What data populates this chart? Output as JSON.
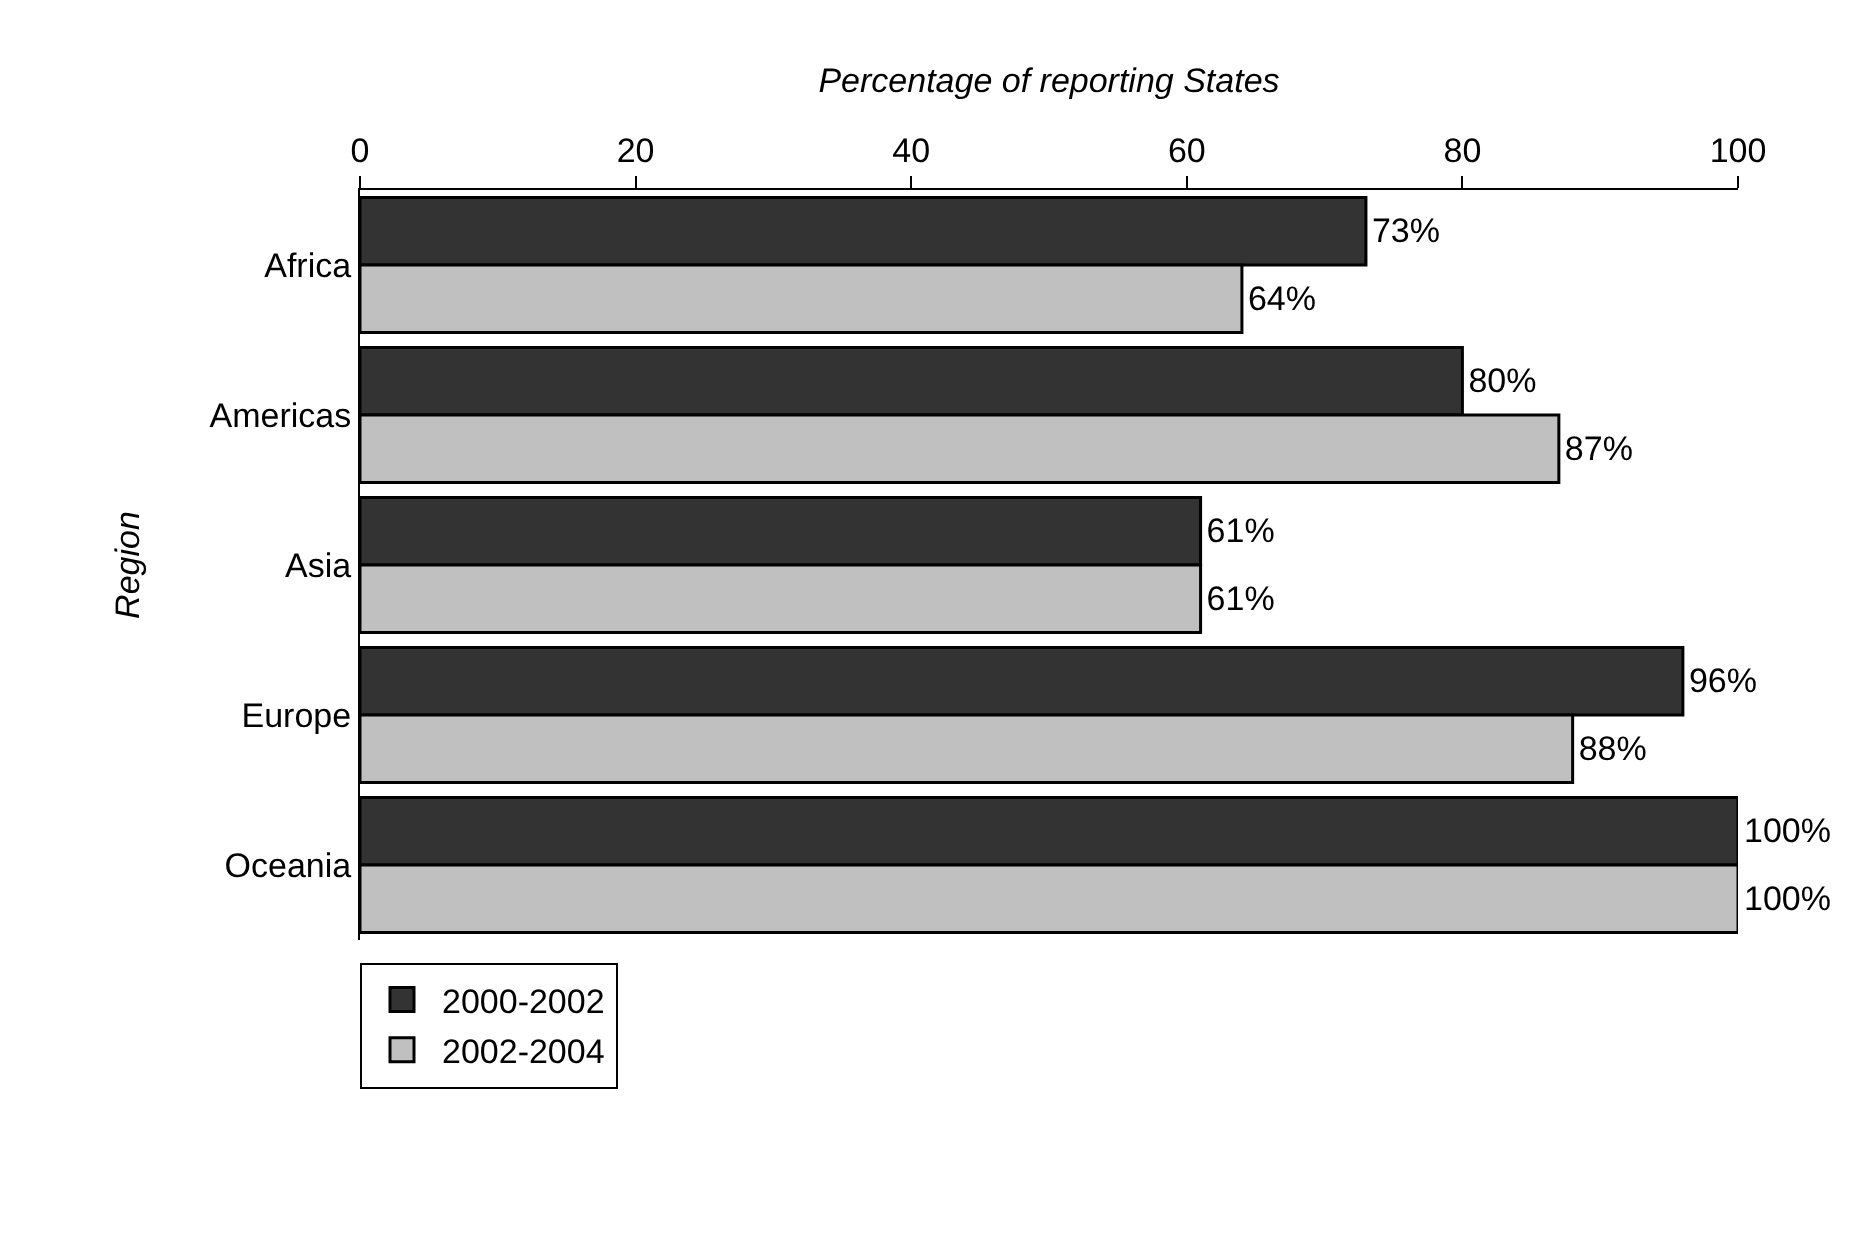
{
  "chart_data": {
    "type": "bar",
    "orientation": "horizontal",
    "xlabel": "Percentage of reporting States",
    "ylabel": "Region",
    "categories": [
      "Africa",
      "Americas",
      "Asia",
      "Europe",
      "Oceania"
    ],
    "series": [
      {
        "name": "2000-2002",
        "color": "#333333",
        "values": [
          73,
          80,
          61,
          96,
          100
        ],
        "value_labels": [
          "73%",
          "80%",
          "61%",
          "96%",
          "100%"
        ]
      },
      {
        "name": "2002-2004",
        "color": "#c0c0c0",
        "values": [
          64,
          87,
          61,
          88,
          100
        ],
        "value_labels": [
          "64%",
          "87%",
          "61%",
          "88%",
          "100%"
        ]
      }
    ],
    "xlim": [
      0,
      100
    ],
    "xticks": [
      0,
      20,
      40,
      60,
      80,
      100
    ],
    "legend": "bottom left"
  }
}
